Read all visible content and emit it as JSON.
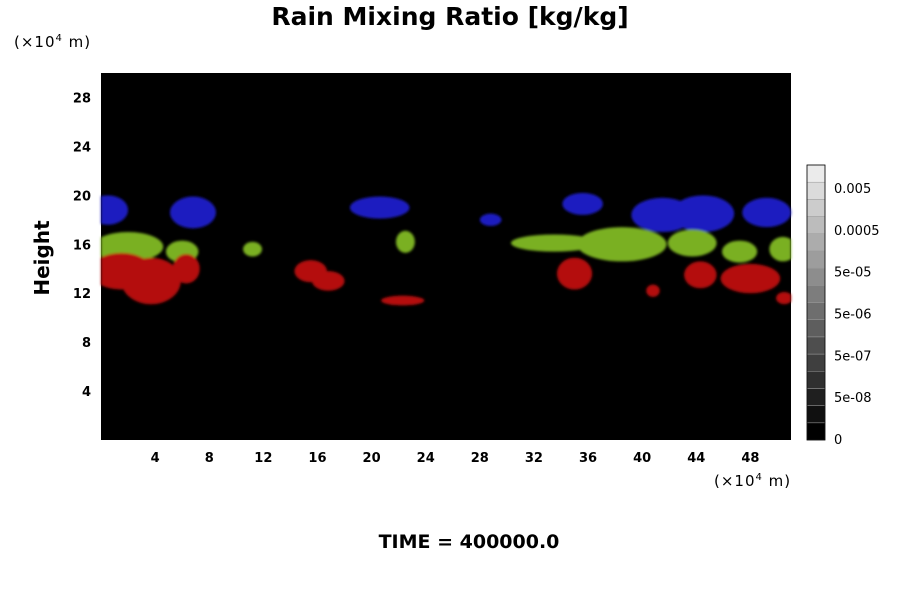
{
  "chart_data": {
    "type": "heatmap",
    "title": "Rain Mixing Ratio [kg/kg]",
    "ylabel": "Height",
    "x_unit": [
      "(×10",
      "4",
      " m)"
    ],
    "y_unit": [
      "(×10",
      "4",
      " m)"
    ],
    "footer": "TIME = 400000.0",
    "xlim": [
      0,
      51
    ],
    "ylim": [
      0,
      30
    ],
    "x_ticks": [
      4,
      8,
      12,
      16,
      20,
      24,
      28,
      32,
      36,
      40,
      44,
      48
    ],
    "y_ticks": [
      4,
      8,
      12,
      16,
      20,
      24,
      28
    ],
    "colorbar": {
      "labels": [
        "0",
        "5e-08",
        "5e-07",
        "5e-06",
        "5e-05",
        "0.0005",
        "0.005"
      ],
      "levels": 16
    },
    "background_color": "#000000",
    "bands": [
      {
        "name": "blue",
        "color": "#1c1cc0",
        "y_range": [
          17.5,
          20
        ],
        "blobs": [
          [
            0.5,
            18.8,
            1.5,
            1.2
          ],
          [
            6.8,
            18.6,
            1.7,
            1.3
          ],
          [
            20.6,
            19.0,
            2.2,
            0.9
          ],
          [
            28.8,
            18.0,
            0.8,
            0.5
          ],
          [
            35.6,
            19.3,
            1.5,
            0.9
          ],
          [
            41.5,
            18.4,
            2.3,
            1.4
          ],
          [
            44.5,
            18.5,
            2.3,
            1.5
          ],
          [
            49.2,
            18.6,
            1.8,
            1.2
          ]
        ]
      },
      {
        "name": "green",
        "color": "#7ab020",
        "y_range": [
          14.5,
          17
        ],
        "blobs": [
          [
            2.0,
            15.8,
            2.6,
            1.2
          ],
          [
            6.0,
            15.4,
            1.2,
            0.9
          ],
          [
            11.2,
            15.6,
            0.7,
            0.6
          ],
          [
            22.5,
            16.2,
            0.7,
            0.9
          ],
          [
            33.5,
            16.1,
            3.2,
            0.7
          ],
          [
            38.5,
            16.0,
            3.3,
            1.4
          ],
          [
            43.7,
            16.1,
            1.8,
            1.1
          ],
          [
            47.2,
            15.4,
            1.3,
            0.9
          ],
          [
            50.4,
            15.6,
            1.0,
            1.0
          ]
        ]
      },
      {
        "name": "red",
        "color": "#b41010",
        "y_range": [
          11,
          15
        ],
        "blobs": [
          [
            1.5,
            13.8,
            2.3,
            1.5
          ],
          [
            3.7,
            13.0,
            2.2,
            1.9
          ],
          [
            6.3,
            14.0,
            1.0,
            1.2
          ],
          [
            15.5,
            13.8,
            1.2,
            0.9
          ],
          [
            16.8,
            13.0,
            1.2,
            0.8
          ],
          [
            22.3,
            11.4,
            1.6,
            0.4
          ],
          [
            35.0,
            13.6,
            1.3,
            1.3
          ],
          [
            40.8,
            12.2,
            0.5,
            0.5
          ],
          [
            44.3,
            13.5,
            1.2,
            1.1
          ],
          [
            48.0,
            13.2,
            2.2,
            1.2
          ],
          [
            50.5,
            11.6,
            0.6,
            0.5
          ]
        ]
      }
    ]
  }
}
